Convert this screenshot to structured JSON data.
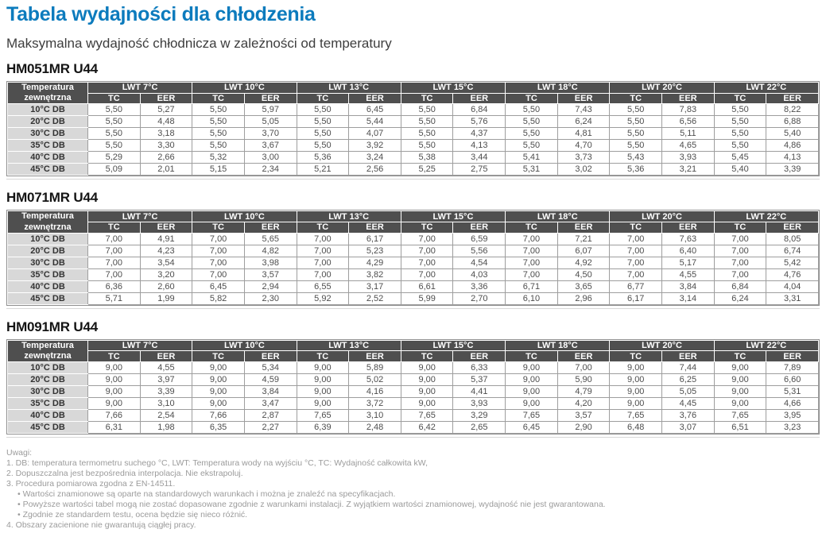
{
  "page": {
    "title": "Tabela wydajności dla chłodzenia",
    "subtitle": "Maksymalna wydajność chłodnicza w zależności od temperatury"
  },
  "colors": {
    "accent": "#0c7bbd",
    "table_header_bg": "#4f4f4f",
    "row_label_bg": "#d8d8d8",
    "grid_line": "#9e9e9e",
    "note_text": "#9b9b9b"
  },
  "table_header": {
    "corner_line1": "Temperatura",
    "corner_line2": "zewnętrzna",
    "lwt_groups": [
      "LWT 7°C",
      "LWT 10°C",
      "LWT 13°C",
      "LWT 15°C",
      "LWT 18°C",
      "LWT 20°C",
      "LWT 22°C"
    ],
    "sub_columns": [
      "TC",
      "EER"
    ]
  },
  "tables": [
    {
      "model": "HM051MR U44",
      "rows": [
        {
          "label": "10°C DB",
          "values": [
            "5,50",
            "5,27",
            "5,50",
            "5,97",
            "5,50",
            "6,45",
            "5,50",
            "6,84",
            "5,50",
            "7,43",
            "5,50",
            "7,83",
            "5,50",
            "8,22"
          ]
        },
        {
          "label": "20°C DB",
          "values": [
            "5,50",
            "4,48",
            "5,50",
            "5,05",
            "5,50",
            "5,44",
            "5,50",
            "5,76",
            "5,50",
            "6,24",
            "5,50",
            "6,56",
            "5,50",
            "6,88"
          ]
        },
        {
          "label": "30°C DB",
          "values": [
            "5,50",
            "3,18",
            "5,50",
            "3,70",
            "5,50",
            "4,07",
            "5,50",
            "4,37",
            "5,50",
            "4,81",
            "5,50",
            "5,11",
            "5,50",
            "5,40"
          ]
        },
        {
          "label": "35°C DB",
          "values": [
            "5,50",
            "3,30",
            "5,50",
            "3,67",
            "5,50",
            "3,92",
            "5,50",
            "4,13",
            "5,50",
            "4,70",
            "5,50",
            "4,65",
            "5,50",
            "4,86"
          ]
        },
        {
          "label": "40°C DB",
          "values": [
            "5,29",
            "2,66",
            "5,32",
            "3,00",
            "5,36",
            "3,24",
            "5,38",
            "3,44",
            "5,41",
            "3,73",
            "5,43",
            "3,93",
            "5,45",
            "4,13"
          ]
        },
        {
          "label": "45°C DB",
          "values": [
            "5,09",
            "2,01",
            "5,15",
            "2,34",
            "5,21",
            "2,56",
            "5,25",
            "2,75",
            "5,31",
            "3,02",
            "5,36",
            "3,21",
            "5,40",
            "3,39"
          ]
        }
      ]
    },
    {
      "model": "HM071MR U44",
      "rows": [
        {
          "label": "10°C DB",
          "values": [
            "7,00",
            "4,91",
            "7,00",
            "5,65",
            "7,00",
            "6,17",
            "7,00",
            "6,59",
            "7,00",
            "7,21",
            "7,00",
            "7,63",
            "7,00",
            "8,05"
          ]
        },
        {
          "label": "20°C DB",
          "values": [
            "7,00",
            "4,23",
            "7,00",
            "4,82",
            "7,00",
            "5,23",
            "7,00",
            "5,56",
            "7,00",
            "6,07",
            "7,00",
            "6,40",
            "7,00",
            "6,74"
          ]
        },
        {
          "label": "30°C DB",
          "values": [
            "7,00",
            "3,54",
            "7,00",
            "3,98",
            "7,00",
            "4,29",
            "7,00",
            "4,54",
            "7,00",
            "4,92",
            "7,00",
            "5,17",
            "7,00",
            "5,42"
          ]
        },
        {
          "label": "35°C DB",
          "values": [
            "7,00",
            "3,20",
            "7,00",
            "3,57",
            "7,00",
            "3,82",
            "7,00",
            "4,03",
            "7,00",
            "4,50",
            "7,00",
            "4,55",
            "7,00",
            "4,76"
          ]
        },
        {
          "label": "40°C DB",
          "values": [
            "6,36",
            "2,60",
            "6,45",
            "2,94",
            "6,55",
            "3,17",
            "6,61",
            "3,36",
            "6,71",
            "3,65",
            "6,77",
            "3,84",
            "6,84",
            "4,04"
          ]
        },
        {
          "label": "45°C DB",
          "values": [
            "5,71",
            "1,99",
            "5,82",
            "2,30",
            "5,92",
            "2,52",
            "5,99",
            "2,70",
            "6,10",
            "2,96",
            "6,17",
            "3,14",
            "6,24",
            "3,31"
          ]
        }
      ]
    },
    {
      "model": "HM091MR U44",
      "rows": [
        {
          "label": "10°C DB",
          "values": [
            "9,00",
            "4,55",
            "9,00",
            "5,34",
            "9,00",
            "5,89",
            "9,00",
            "6,33",
            "9,00",
            "7,00",
            "9,00",
            "7,44",
            "9,00",
            "7,89"
          ]
        },
        {
          "label": "20°C DB",
          "values": [
            "9,00",
            "3,97",
            "9,00",
            "4,59",
            "9,00",
            "5,02",
            "9,00",
            "5,37",
            "9,00",
            "5,90",
            "9,00",
            "6,25",
            "9,00",
            "6,60"
          ]
        },
        {
          "label": "30°C DB",
          "values": [
            "9,00",
            "3,39",
            "9,00",
            "3,84",
            "9,00",
            "4,16",
            "9,00",
            "4,41",
            "9,00",
            "4,79",
            "9,00",
            "5,05",
            "9,00",
            "5,31"
          ]
        },
        {
          "label": "35°C DB",
          "values": [
            "9,00",
            "3,10",
            "9,00",
            "3,47",
            "9,00",
            "3,72",
            "9,00",
            "3,93",
            "9,00",
            "4,20",
            "9,00",
            "4,45",
            "9,00",
            "4,66"
          ]
        },
        {
          "label": "40°C DB",
          "values": [
            "7,66",
            "2,54",
            "7,66",
            "2,87",
            "7,65",
            "3,10",
            "7,65",
            "3,29",
            "7,65",
            "3,57",
            "7,65",
            "3,76",
            "7,65",
            "3,95"
          ]
        },
        {
          "label": "45°C DB",
          "values": [
            "6,31",
            "1,98",
            "6,35",
            "2,27",
            "6,39",
            "2,48",
            "6,42",
            "2,65",
            "6,45",
            "2,90",
            "6,48",
            "3,07",
            "6,51",
            "3,23"
          ]
        }
      ]
    }
  ],
  "notes": {
    "heading": "Uwagi:",
    "lines": [
      {
        "text": "1. DB: temperatura termometru suchego °C, LWT: Temperatura wody na wyjściu °C, TC: Wydajność całkowita kW,",
        "indent": false
      },
      {
        "text": "2. Dopuszczalna jest bezpośrednia interpolacja. Nie ekstrapoluj.",
        "indent": false
      },
      {
        "text": "3. Procedura pomiarowa zgodna z EN-14511.",
        "indent": false
      },
      {
        "text": "• Wartości znamionowe są oparte na standardowych warunkach i można je znaleźć na specyfikacjach.",
        "indent": true
      },
      {
        "text": "• Powyższe wartości tabel mogą nie zostać dopasowane zgodnie z warunkami instalacji. Z wyjątkiem wartości znamionowej, wydajność nie jest gwarantowana.",
        "indent": true
      },
      {
        "text": "• Zgodnie ze standardem testu, ocena będzie się nieco różnić.",
        "indent": true
      },
      {
        "text": "4. Obszary zacienione nie gwarantują ciągłej pracy.",
        "indent": false
      }
    ]
  }
}
